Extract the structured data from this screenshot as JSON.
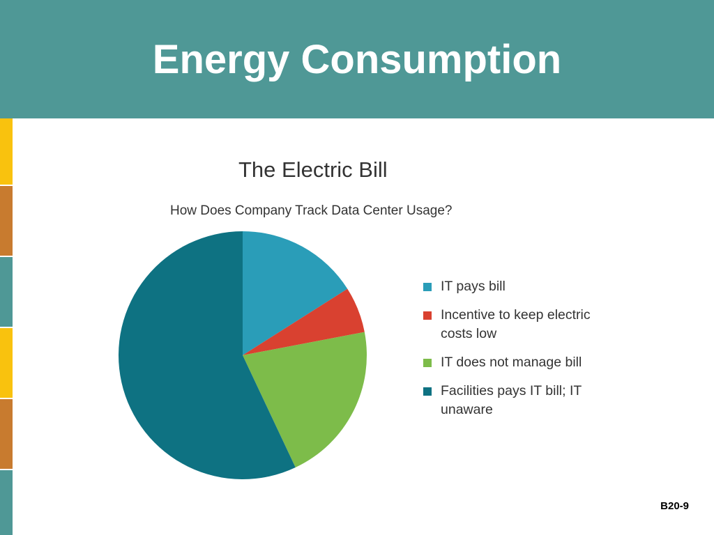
{
  "slide": {
    "title": "Energy Consumption",
    "page_number": "B20-9"
  },
  "chart_data": {
    "type": "pie",
    "title": "The Electric Bill",
    "subtitle": "How Does Company Track Data Center Usage?",
    "categories": [
      "IT pays bill",
      "Incentive to keep electric costs low",
      "IT does not manage bill",
      "Facilities pays IT bill; IT unaware"
    ],
    "values": [
      16,
      6,
      21,
      57
    ],
    "colors": [
      "#2a9db8",
      "#d94130",
      "#7dbc4a",
      "#0e7282"
    ],
    "start_angle": 90,
    "direction": "clockwise",
    "legend": "right"
  }
}
